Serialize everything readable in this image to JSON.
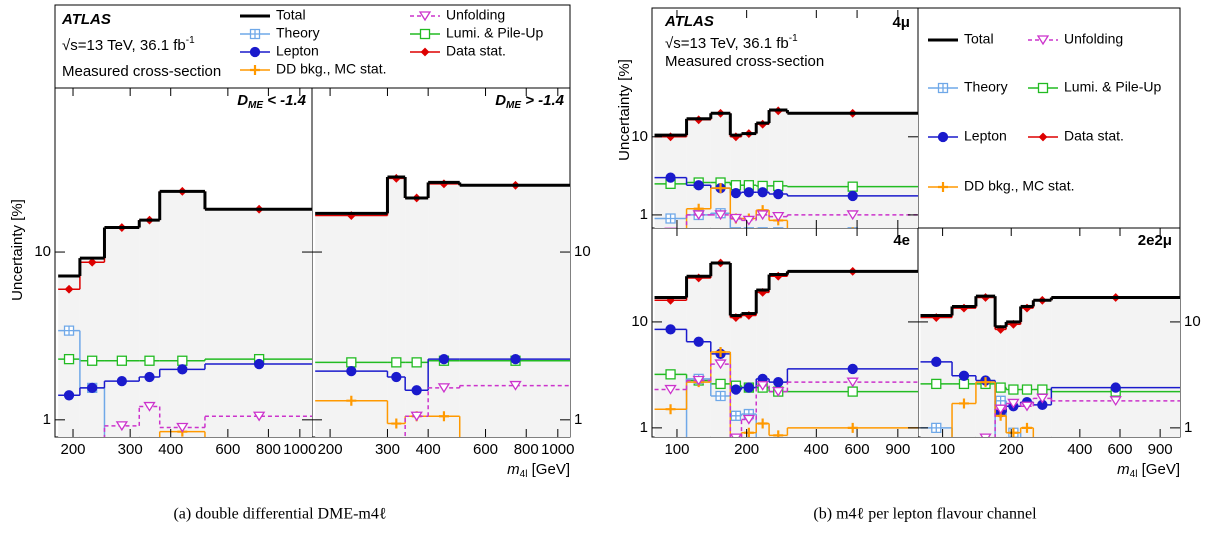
{
  "chart_data": [
    {
      "type": "step",
      "log_x": true,
      "log_y": true,
      "atlas": "ATLAS",
      "energy": {
        "text": "√s=13 TeV, 36.1 fb",
        "sup": "-1"
      },
      "description": "Measured cross-section",
      "ylabel": "Uncertainty [%]",
      "xlabel": {
        "symbol": "m",
        "sub": "4l",
        "text": " [GeV]"
      },
      "caption": "(a) double differential DME-m4ℓ",
      "series": [
        {
          "name": "Total",
          "color": "#000000",
          "marker": "none"
        },
        {
          "name": "Theory",
          "color": "#6fa8e8",
          "marker": "square-cross"
        },
        {
          "name": "Lepton",
          "color": "#1a1acc",
          "marker": "circle"
        },
        {
          "name": "DD bkg., MC stat.",
          "color": "#ff9900",
          "marker": "plus"
        },
        {
          "name": "Unfolding",
          "color": "#cc33cc",
          "marker": "triangle-down"
        },
        {
          "name": "Lumi. & Pile-Up",
          "color": "#22bb22",
          "marker": "square"
        },
        {
          "name": "Data stat.",
          "color": "#dd0000",
          "marker": "diamond"
        }
      ],
      "panels": [
        {
          "label": {
            "symbol": "D",
            "sub": "ME",
            "text": " < -1.4"
          },
          "ylabels": "left",
          "xlabels": true,
          "bins": [
            180,
            210,
            250,
            320,
            370,
            510,
            1100
          ],
          "values": [
            [
              7.2,
              9.2,
              14,
              15.5,
              23,
              18
            ],
            [
              3.4,
              1.55,
              0.7,
              0.6,
              0.6,
              0.6
            ],
            [
              1.4,
              1.55,
              1.7,
              1.8,
              2.0,
              2.15
            ],
            [
              0.6,
              0.6,
              0.6,
              0.6,
              0.85,
              0.6
            ],
            [
              0.7,
              0.7,
              0.92,
              1.2,
              0.9,
              1.05
            ],
            [
              2.3,
              2.25,
              2.25,
              2.25,
              2.25,
              2.3
            ],
            [
              6,
              8.7,
              14,
              15.5,
              23,
              18
            ]
          ],
          "xlim": [
            176,
            1090
          ],
          "ylim": [
            0.79,
            95
          ],
          "xticks": [
            200,
            300,
            400,
            600,
            800,
            1000
          ],
          "yticks": [
            1,
            10
          ]
        },
        {
          "label": {
            "symbol": "D",
            "sub": "ME",
            "text": " > -1.4"
          },
          "ylabels": "right",
          "xlabels": true,
          "bins": [
            180,
            300,
            340,
            400,
            500,
            1100
          ],
          "values": [
            [
              17,
              28,
              21,
              26,
              25
            ],
            [
              0.5,
              0.5,
              0.5,
              0.5,
              0.5
            ],
            [
              1.95,
              1.8,
              1.5,
              2.3,
              2.3
            ],
            [
              1.3,
              0.95,
              1.05,
              1.05,
              0.7
            ],
            [
              0.6,
              0.6,
              1.05,
              1.55,
              1.6
            ],
            [
              2.2,
              2.2,
              2.2,
              2.25,
              2.25
            ],
            [
              16.5,
              27.5,
              21,
              25.5,
              25
            ]
          ],
          "xlim": [
            176,
            1090
          ],
          "ylim": [
            0.79,
            95
          ],
          "xticks": [
            200,
            300,
            400,
            600,
            800,
            1000
          ],
          "yticks": [
            1,
            10
          ]
        }
      ]
    },
    {
      "type": "step",
      "log_x": true,
      "log_y": true,
      "atlas": "ATLAS",
      "energy": {
        "text": "√s=13 TeV, 36.1 fb",
        "sup": "-1"
      },
      "description": "Measured cross-section",
      "ylabel": "Uncertainty [%]",
      "xlabel": {
        "symbol": "m",
        "sub": "4l",
        "text": " [GeV]"
      },
      "caption": "(b) m4ℓ per lepton flavour channel",
      "series": [
        {
          "name": "Total",
          "color": "#000000",
          "marker": "none"
        },
        {
          "name": "Theory",
          "color": "#6fa8e8",
          "marker": "square-cross"
        },
        {
          "name": "Lepton",
          "color": "#1a1acc",
          "marker": "circle"
        },
        {
          "name": "DD bkg., MC stat.",
          "color": "#ff9900",
          "marker": "plus"
        },
        {
          "name": "Unfolding",
          "color": "#cc33cc",
          "marker": "triangle-down"
        },
        {
          "name": "Lumi. & Pile-Up",
          "color": "#22bb22",
          "marker": "square"
        },
        {
          "name": "Data stat.",
          "color": "#dd0000",
          "marker": "diamond"
        }
      ],
      "panels": [
        {
          "label": "4μ",
          "ylabels": "left",
          "xlabels": false,
          "bins": [
            80,
            110,
            140,
            170,
            190,
            220,
            250,
            300,
            1100
          ],
          "values": [
            [
              10.5,
              17,
              20,
              10.5,
              11,
              15,
              22,
              20
            ],
            [
              0.9,
              1.0,
              1.05,
              0.6,
              0.6,
              0.6,
              0.6,
              0.6
            ],
            [
              3,
              2.4,
              2.2,
              1.9,
              1.95,
              1.95,
              1.85,
              1.75
            ],
            [
              0.5,
              1.2,
              2.2,
              0.9,
              0.9,
              1.15,
              0.85,
              0.6
            ],
            [
              0.6,
              1.0,
              1.0,
              0.9,
              0.85,
              1.0,
              0.95,
              1.0
            ],
            [
              2.5,
              2.6,
              2.6,
              2.4,
              2.4,
              2.35,
              2.35,
              2.3
            ],
            [
              10,
              16.5,
              20,
              10,
              11,
              14.5,
              21.5,
              20
            ]
          ],
          "xlim": [
            78,
            1100
          ],
          "ylim": [
            0.68,
            420
          ],
          "xticks": [
            100,
            200,
            400,
            600,
            900
          ],
          "yticks": [
            1,
            10
          ]
        },
        {
          "label": "4e",
          "ylabels": "left",
          "xlabels": true,
          "bins": [
            80,
            110,
            140,
            170,
            190,
            220,
            250,
            300,
            1100
          ],
          "values": [
            [
              17,
              27,
              36,
              11.5,
              12,
              20,
              28,
              30
            ],
            [
              0.6,
              2.9,
              2.0,
              1.3,
              1.35,
              0.6,
              0.6,
              0.6
            ],
            [
              8.5,
              6.5,
              5,
              2.3,
              2.4,
              2.9,
              2.7,
              3.6
            ],
            [
              1.5,
              2.7,
              5.2,
              0.7,
              0.9,
              1.1,
              0.85,
              1.0
            ],
            [
              2.3,
              2.8,
              4.0,
              0.8,
              1.2,
              2.5,
              2.2,
              2.7
            ],
            [
              3.2,
              2.8,
              2.6,
              2.5,
              2.4,
              2.4,
              2.2,
              2.2
            ],
            [
              16,
              26,
              36,
              11,
              11.5,
              19,
              27,
              30
            ]
          ],
          "xlim": [
            78,
            1100
          ],
          "ylim": [
            0.82,
            77
          ],
          "xticks": [
            100,
            200,
            400,
            600,
            900
          ],
          "yticks": [
            1,
            10
          ]
        },
        {
          "label": "2e2μ",
          "ylabels": "right",
          "xlabels": true,
          "bins": [
            80,
            110,
            140,
            170,
            190,
            220,
            250,
            300,
            1100
          ],
          "values": [
            [
              11.5,
              14,
              17.5,
              9,
              10,
              14,
              16,
              17
            ],
            [
              1.0,
              0.6,
              0.6,
              1.8,
              0.9,
              0.6,
              0.6,
              0.6
            ],
            [
              4.2,
              3.1,
              2.8,
              1.4,
              1.6,
              1.75,
              1.65,
              2.4
            ],
            [
              0.6,
              1.7,
              2.7,
              1.3,
              0.9,
              1.0,
              0.6,
              0.6
            ],
            [
              0.7,
              0.6,
              0.8,
              1.5,
              1.7,
              1.6,
              1.9,
              1.8
            ],
            [
              2.6,
              2.6,
              2.6,
              2.4,
              2.3,
              2.3,
              2.3,
              2.2
            ],
            [
              11,
              13.5,
              17,
              8.5,
              9.5,
              13.5,
              16,
              17
            ]
          ],
          "xlim": [
            78,
            1100
          ],
          "ylim": [
            0.82,
            77
          ],
          "xticks": [
            100,
            200,
            400,
            600,
            900
          ],
          "yticks": [
            1,
            10
          ]
        }
      ]
    }
  ]
}
